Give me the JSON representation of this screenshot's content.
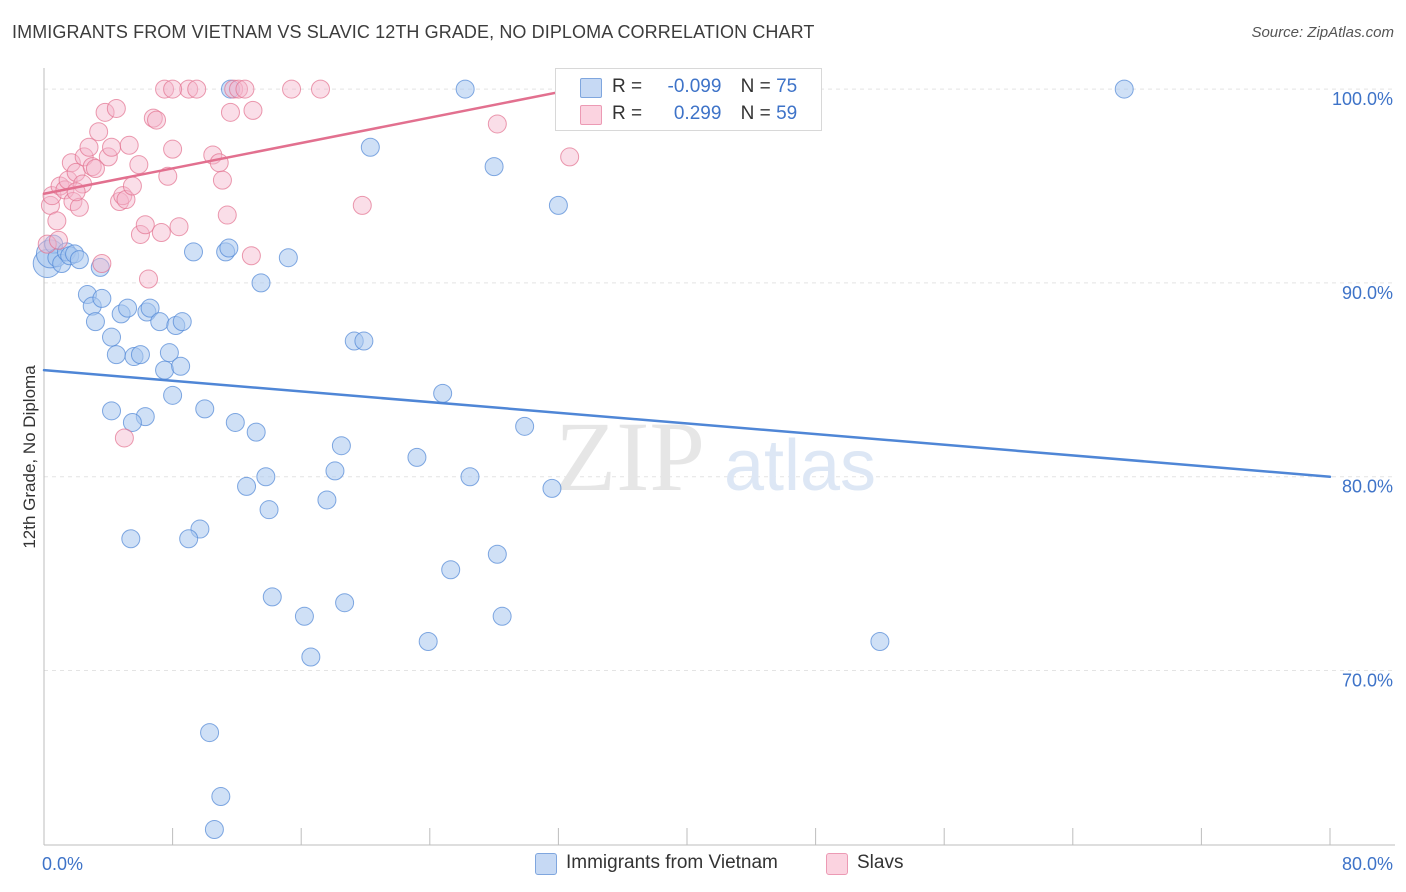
{
  "title": "IMMIGRANTS FROM VIETNAM VS SLAVIC 12TH GRADE, NO DIPLOMA CORRELATION CHART",
  "source": "Source: ZipAtlas.com",
  "watermark": {
    "zip": "ZIP",
    "atlas": "atlas"
  },
  "legend": {
    "rows": [
      {
        "r_label": "R =",
        "r_value": "-0.099",
        "n_label": "N =",
        "n_value": "75",
        "color": "#a8c6ef"
      },
      {
        "r_label": "R =",
        "r_value": "0.299",
        "n_label": "N =",
        "n_value": "59",
        "color": "#f5b6cb"
      }
    ]
  },
  "bottom_legend": [
    {
      "label": "Immigrants from Vietnam",
      "color": "#a8c6ef"
    },
    {
      "label": "Slavs",
      "color": "#f5b6cb"
    }
  ],
  "chart_data": {
    "type": "scatter",
    "title": "IMMIGRANTS FROM VIETNAM VS SLAVIC 12TH GRADE, NO DIPLOMA CORRELATION CHART",
    "xlabel": "",
    "ylabel": "12th Grade, No Diploma",
    "xlim": [
      0,
      80
    ],
    "ylim": [
      61,
      101.5
    ],
    "x_tick_labels": [
      "0.0%",
      "80.0%"
    ],
    "y_ticks": [
      70,
      80,
      90,
      100
    ],
    "y_tick_labels": [
      "70.0%",
      "80.0%",
      "90.0%",
      "100.0%"
    ],
    "grid": true,
    "legend_position": "bottom",
    "series": [
      {
        "name": "Immigrants from Vietnam",
        "color": "#4f86d6",
        "fill": "#a8c6ef",
        "trend": {
          "x": [
            0,
            80
          ],
          "y": [
            85.5,
            80.0
          ]
        },
        "points": [
          [
            0.2,
            91.0
          ],
          [
            0.4,
            91.5
          ],
          [
            0.6,
            92.0
          ],
          [
            0.8,
            91.3
          ],
          [
            1.1,
            91.0
          ],
          [
            1.4,
            91.6
          ],
          [
            1.6,
            91.4
          ],
          [
            1.9,
            91.5
          ],
          [
            2.2,
            91.2
          ],
          [
            2.7,
            89.4
          ],
          [
            3.0,
            88.8
          ],
          [
            3.2,
            88.0
          ],
          [
            3.6,
            89.2
          ],
          [
            3.5,
            90.8
          ],
          [
            4.2,
            87.2
          ],
          [
            4.5,
            86.3
          ],
          [
            4.8,
            88.4
          ],
          [
            5.2,
            88.7
          ],
          [
            5.6,
            86.2
          ],
          [
            6.0,
            86.3
          ],
          [
            6.4,
            88.5
          ],
          [
            6.6,
            88.7
          ],
          [
            7.2,
            88.0
          ],
          [
            7.5,
            85.5
          ],
          [
            7.8,
            86.4
          ],
          [
            8.0,
            84.2
          ],
          [
            8.2,
            87.8
          ],
          [
            8.5,
            85.7
          ],
          [
            8.6,
            88.0
          ],
          [
            9.3,
            91.6
          ],
          [
            9.7,
            77.3
          ],
          [
            10.0,
            83.5
          ],
          [
            10.3,
            66.8
          ],
          [
            10.6,
            61.8
          ],
          [
            11.0,
            63.5
          ],
          [
            11.3,
            91.6
          ],
          [
            11.5,
            91.8
          ],
          [
            11.6,
            100.0
          ],
          [
            11.9,
            82.8
          ],
          [
            12.6,
            79.5
          ],
          [
            13.2,
            82.3
          ],
          [
            13.5,
            90.0
          ],
          [
            13.8,
            80.0
          ],
          [
            14.0,
            78.3
          ],
          [
            14.2,
            73.8
          ],
          [
            15.2,
            91.3
          ],
          [
            16.2,
            72.8
          ],
          [
            16.6,
            70.7
          ],
          [
            17.6,
            78.8
          ],
          [
            18.1,
            80.3
          ],
          [
            18.5,
            81.6
          ],
          [
            18.7,
            73.5
          ],
          [
            19.3,
            87.0
          ],
          [
            19.9,
            87.0
          ],
          [
            20.3,
            97.0
          ],
          [
            23.2,
            81.0
          ],
          [
            23.9,
            71.5
          ],
          [
            24.8,
            84.3
          ],
          [
            25.3,
            75.2
          ],
          [
            26.2,
            100.0
          ],
          [
            26.5,
            80.0
          ],
          [
            28.0,
            96.0
          ],
          [
            28.2,
            76.0
          ],
          [
            28.5,
            72.8
          ],
          [
            29.9,
            82.6
          ],
          [
            31.6,
            79.4
          ],
          [
            32.0,
            94.0
          ],
          [
            41.4,
            100.0
          ],
          [
            52.0,
            71.5
          ],
          [
            67.2,
            100.0
          ],
          [
            6.3,
            83.1
          ],
          [
            5.5,
            82.8
          ],
          [
            4.2,
            83.4
          ],
          [
            5.4,
            76.8
          ],
          [
            9.0,
            76.8
          ]
        ]
      },
      {
        "name": "Slavs",
        "color": "#e2708f",
        "fill": "#f5b6cb",
        "trend": {
          "x": [
            0,
            33
          ],
          "y": [
            94.6,
            100.0
          ]
        },
        "points": [
          [
            0.2,
            92.0
          ],
          [
            0.4,
            94.0
          ],
          [
            0.5,
            94.5
          ],
          [
            0.8,
            93.2
          ],
          [
            1.0,
            95.0
          ],
          [
            1.3,
            94.8
          ],
          [
            1.5,
            95.3
          ],
          [
            1.7,
            96.2
          ],
          [
            1.8,
            94.2
          ],
          [
            2.0,
            95.7
          ],
          [
            2.2,
            93.9
          ],
          [
            2.4,
            95.1
          ],
          [
            2.5,
            96.5
          ],
          [
            2.8,
            97.0
          ],
          [
            3.0,
            96.0
          ],
          [
            3.2,
            95.9
          ],
          [
            3.4,
            97.8
          ],
          [
            3.6,
            91.0
          ],
          [
            3.8,
            98.8
          ],
          [
            4.0,
            96.5
          ],
          [
            4.2,
            97.0
          ],
          [
            4.5,
            99.0
          ],
          [
            4.7,
            94.2
          ],
          [
            4.9,
            94.5
          ],
          [
            5.1,
            94.3
          ],
          [
            5.3,
            97.1
          ],
          [
            5.5,
            95.0
          ],
          [
            5.9,
            96.1
          ],
          [
            6.0,
            92.5
          ],
          [
            6.3,
            93.0
          ],
          [
            6.5,
            90.2
          ],
          [
            6.8,
            98.5
          ],
          [
            7.0,
            98.4
          ],
          [
            7.3,
            92.6
          ],
          [
            7.5,
            100.0
          ],
          [
            7.7,
            95.5
          ],
          [
            8.0,
            96.9
          ],
          [
            8.4,
            92.9
          ],
          [
            9.0,
            100.0
          ],
          [
            9.5,
            100.0
          ],
          [
            10.5,
            96.6
          ],
          [
            10.9,
            96.2
          ],
          [
            11.1,
            95.3
          ],
          [
            11.4,
            93.5
          ],
          [
            11.6,
            98.8
          ],
          [
            11.8,
            100.0
          ],
          [
            12.1,
            100.0
          ],
          [
            12.5,
            100.0
          ],
          [
            12.9,
            91.4
          ],
          [
            13.0,
            98.9
          ],
          [
            15.4,
            100.0
          ],
          [
            17.2,
            100.0
          ],
          [
            19.8,
            94.0
          ],
          [
            28.2,
            98.2
          ],
          [
            32.7,
            96.5
          ],
          [
            5.0,
            82.0
          ],
          [
            0.9,
            92.2
          ],
          [
            2.0,
            94.7
          ],
          [
            8.0,
            100.0
          ]
        ]
      }
    ]
  }
}
